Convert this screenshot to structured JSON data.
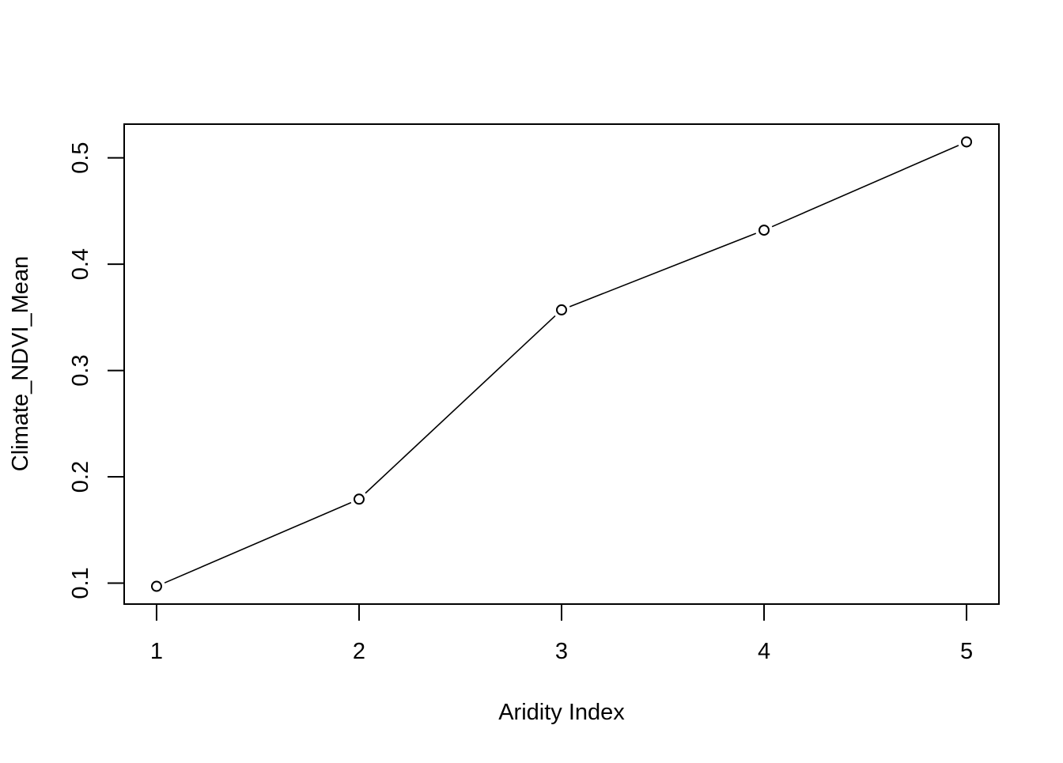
{
  "chart_data": {
    "type": "line",
    "xlabel": "Aridity Index",
    "ylabel": "Climate_NDVI_Mean",
    "x": [
      1,
      2,
      3,
      4,
      5
    ],
    "series": [
      {
        "values": [
          0.097,
          0.179,
          0.357,
          0.432,
          0.515
        ]
      }
    ],
    "xticks": [
      1,
      2,
      3,
      4,
      5
    ],
    "xtick_labels": [
      "1",
      "2",
      "3",
      "4",
      "5"
    ],
    "yticks": [
      0.1,
      0.2,
      0.3,
      0.4,
      0.5
    ],
    "ytick_labels": [
      "0.1",
      "0.2",
      "0.3",
      "0.4",
      "0.5"
    ],
    "xlim": [
      0.84,
      5.16
    ],
    "ylim": [
      0.0803,
      0.5317
    ],
    "grid": false,
    "marker": "open-circle",
    "line_color": "#000000"
  }
}
